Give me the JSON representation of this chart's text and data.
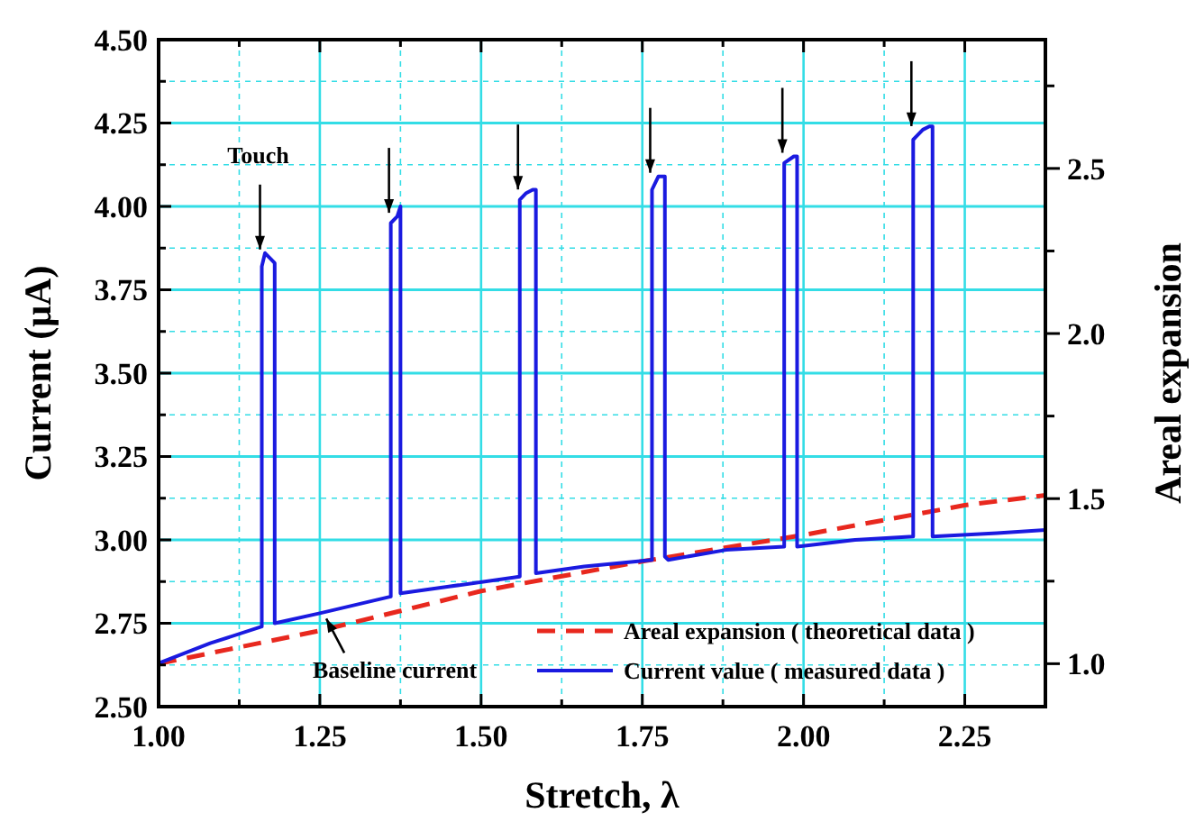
{
  "chart_data": {
    "type": "line",
    "xlabel": "Stretch, λ",
    "ylabel": "Current (μA)",
    "y2label": "Areal expansion",
    "xlim": [
      1.0,
      2.375
    ],
    "xticks": [
      {
        "value": 1.0,
        "label": "1.00"
      },
      {
        "value": 1.125,
        "label": null
      },
      {
        "value": 1.25,
        "label": "1.25"
      },
      {
        "value": 1.375,
        "label": null
      },
      {
        "value": 1.5,
        "label": "1.50"
      },
      {
        "value": 1.625,
        "label": null
      },
      {
        "value": 1.75,
        "label": "1.75"
      },
      {
        "value": 1.875,
        "label": null
      },
      {
        "value": 2.0,
        "label": "2.00"
      },
      {
        "value": 2.125,
        "label": null
      },
      {
        "value": 2.25,
        "label": "2.25"
      }
    ],
    "ylim": [
      2.5,
      4.5
    ],
    "yticks": [
      {
        "value": 2.5,
        "label": "2.50"
      },
      {
        "value": 2.625,
        "label": null
      },
      {
        "value": 2.75,
        "label": "2.75"
      },
      {
        "value": 2.875,
        "label": null
      },
      {
        "value": 3.0,
        "label": "3.00"
      },
      {
        "value": 3.125,
        "label": null
      },
      {
        "value": 3.25,
        "label": "3.25"
      },
      {
        "value": 3.375,
        "label": null
      },
      {
        "value": 3.5,
        "label": "3.50"
      },
      {
        "value": 3.625,
        "label": null
      },
      {
        "value": 3.75,
        "label": "3.75"
      },
      {
        "value": 3.875,
        "label": null
      },
      {
        "value": 4.0,
        "label": "4.00"
      },
      {
        "value": 4.125,
        "label": null
      },
      {
        "value": 4.25,
        "label": "4.25"
      },
      {
        "value": 4.375,
        "label": null
      },
      {
        "value": 4.5,
        "label": "4.50"
      }
    ],
    "y2lim": [
      0.87,
      2.89
    ],
    "y2ticks": [
      {
        "value": 1.0,
        "label": "1.0"
      },
      {
        "value": 1.25,
        "label": null
      },
      {
        "value": 1.5,
        "label": "1.5"
      },
      {
        "value": 1.75,
        "label": null
      },
      {
        "value": 2.0,
        "label": "2.0"
      },
      {
        "value": 2.25,
        "label": null
      },
      {
        "value": 2.5,
        "label": "2.5"
      },
      {
        "value": 2.75,
        "label": null
      }
    ],
    "grid": true,
    "legend": "bottom right",
    "series": [
      {
        "name": "Areal expansion ( theoretical data )",
        "color": "#e8281e",
        "axis": "y2",
        "line_style": "dashed",
        "x": [
          1.0,
          1.25,
          1.5,
          1.75,
          2.0,
          2.25,
          2.375
        ],
        "values": [
          1.0,
          1.1,
          1.22,
          1.31,
          1.39,
          1.48,
          1.51
        ]
      },
      {
        "name": "Current value ( measured data )",
        "color": "#1a1ae0",
        "line_style": "solid",
        "x": [
          1.0,
          1.08,
          1.16,
          1.16,
          1.165,
          1.175,
          1.18,
          1.18,
          1.25,
          1.36,
          1.36,
          1.37,
          1.375,
          1.375,
          1.45,
          1.56,
          1.56,
          1.57,
          1.58,
          1.585,
          1.585,
          1.66,
          1.765,
          1.765,
          1.775,
          1.785,
          1.785,
          1.79,
          1.88,
          1.97,
          1.97,
          1.985,
          1.99,
          1.99,
          2.08,
          2.17,
          2.17,
          2.185,
          2.195,
          2.2,
          2.2,
          2.3,
          2.375
        ],
        "values": [
          2.63,
          2.69,
          2.74,
          3.82,
          3.86,
          3.84,
          3.83,
          2.75,
          2.78,
          2.83,
          3.95,
          3.97,
          4.0,
          2.84,
          2.86,
          2.89,
          4.02,
          4.04,
          4.05,
          4.05,
          2.9,
          2.92,
          2.94,
          4.05,
          4.09,
          4.09,
          2.95,
          2.94,
          2.97,
          2.98,
          4.13,
          4.15,
          4.15,
          2.98,
          3.0,
          3.01,
          4.2,
          4.23,
          4.24,
          4.24,
          3.01,
          3.02,
          3.03
        ]
      }
    ],
    "annotations": [
      {
        "text": "Touch",
        "x": 1.16,
        "y": 3.86
      },
      {
        "text": "Baseline current",
        "x": 1.26,
        "y": 2.78
      }
    ]
  }
}
